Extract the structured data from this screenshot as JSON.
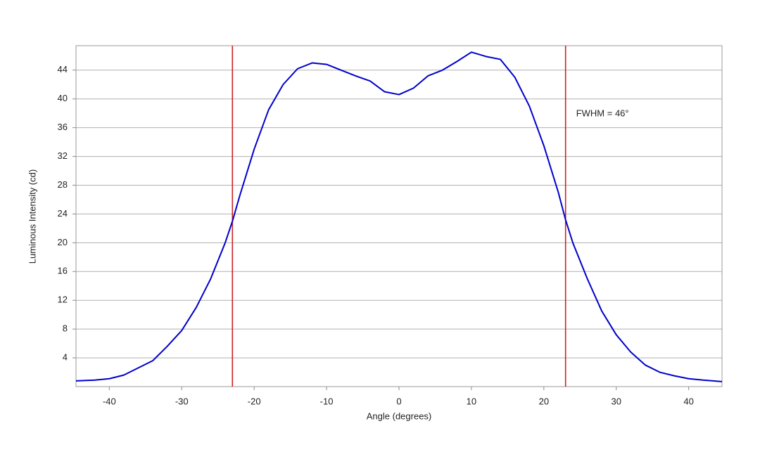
{
  "chart_data": {
    "type": "line",
    "xlabel": "Angle (degrees)",
    "ylabel": "Luminous Intensity (cd)",
    "x": [
      -44.6,
      -42,
      -40,
      -38,
      -36,
      -34,
      -32,
      -30,
      -28,
      -26,
      -24,
      -23,
      -22,
      -20,
      -18,
      -16,
      -14,
      -12,
      -10,
      -8,
      -6,
      -4,
      -2,
      0,
      2,
      4,
      6,
      8,
      10,
      12,
      14,
      16,
      18,
      20,
      22,
      23,
      24,
      26,
      28,
      30,
      32,
      34,
      36,
      38,
      40,
      42,
      44.6
    ],
    "series": [
      {
        "color": "#0000cc",
        "values": [
          0.8,
          0.9,
          1.1,
          1.6,
          2.6,
          3.6,
          5.6,
          7.8,
          11.0,
          15.0,
          20.0,
          23.0,
          26.5,
          33.0,
          38.5,
          42.0,
          44.2,
          45.0,
          44.8,
          44.0,
          43.2,
          42.5,
          41.0,
          40.6,
          41.5,
          43.2,
          44.0,
          45.2,
          46.5,
          45.9,
          45.5,
          43.0,
          39.0,
          33.5,
          27.0,
          23.2,
          20.0,
          15.0,
          10.5,
          7.2,
          4.8,
          3.0,
          2.0,
          1.5,
          1.1,
          0.9,
          0.7
        ]
      }
    ],
    "vlines": [
      -23,
      23
    ],
    "vline_color": "#cc2222",
    "annotation": "FWHM = 46°",
    "xlim": [
      -44.6,
      44.6
    ],
    "ylim": [
      0,
      47.4
    ],
    "xticks": [
      -40,
      -30,
      -20,
      -10,
      0,
      10,
      20,
      30,
      40
    ],
    "yticks": [
      4,
      8,
      12,
      16,
      20,
      24,
      28,
      32,
      36,
      40,
      44
    ],
    "grid": true
  }
}
